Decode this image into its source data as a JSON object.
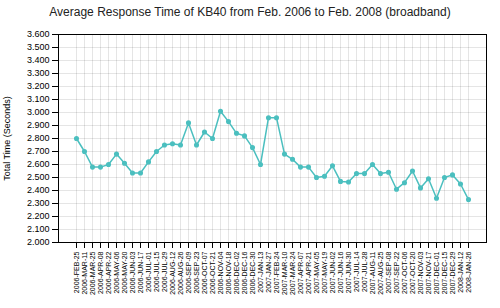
{
  "chart_data": {
    "type": "line",
    "title": "Average Response Time of KB40 from Feb. 2006 to Feb. 2008 (broadband)",
    "ylabel": "Total Time (Seconds)",
    "categories": [
      "2006-FEB-25",
      "2006-MAR-11",
      "2006-MAR-25",
      "2006-APR-08",
      "2006-APR-22",
      "2006-MAY-06",
      "2006-MAY-20",
      "2006-JUN-03",
      "2006-JUN-17",
      "2006-JUL-01",
      "2006-JUL-15",
      "2006-JUL-29",
      "2006-AUG-12",
      "2006-AUG-26",
      "2006-SEP-09",
      "2006-SEP-23",
      "2006-OCT-07",
      "2006-OCT-21",
      "2006-NOV-04",
      "2006-NOV-18",
      "2006-DEC-02",
      "2006-DEC-16",
      "2006-DEC-30",
      "2007-JAN-13",
      "2007-JAN-27",
      "2007-FEB-24",
      "2007-MAR-10",
      "2007-MAR-24",
      "2007-APR-07",
      "2007-APR-21",
      "2007-MAY-05",
      "2007-MAY-19",
      "2007-JUN-02",
      "2007-JUN-16",
      "2007-JUN-30",
      "2007-JUL-14",
      "2007-JUL-28",
      "2007-AUG-11",
      "2007-AUG-25",
      "2007-SEP-08",
      "2007-SEP-22",
      "2007-OCT-06",
      "2007-OCT-20",
      "2007-NOV-03",
      "2007-NOV-17",
      "2007-DEC-01",
      "2007-DEC-15",
      "2007-DEC-29",
      "2008-JAN-12",
      "2008-JAN-26"
    ],
    "values": [
      2.8,
      2.7,
      2.58,
      2.58,
      2.6,
      2.68,
      2.61,
      2.535,
      2.535,
      2.62,
      2.7,
      2.75,
      2.76,
      2.75,
      2.92,
      2.75,
      2.85,
      2.8,
      3.01,
      2.93,
      2.84,
      2.82,
      2.73,
      2.6,
      2.96,
      2.96,
      2.68,
      2.64,
      2.58,
      2.58,
      2.5,
      2.51,
      2.59,
      2.47,
      2.465,
      2.53,
      2.53,
      2.6,
      2.53,
      2.54,
      2.41,
      2.46,
      2.55,
      2.42,
      2.49,
      2.34,
      2.5,
      2.52,
      2.45,
      2.33
    ],
    "color": "#4bbfbf",
    "marker": "circle",
    "ylim": [
      2.0,
      3.6
    ],
    "yticks": [
      {
        "value": 2.0,
        "label": "2.000"
      },
      {
        "value": 2.1,
        "label": "2.100"
      },
      {
        "value": 2.2,
        "label": "2.200"
      },
      {
        "value": 2.3,
        "label": "2.300"
      },
      {
        "value": 2.4,
        "label": "2.400"
      },
      {
        "value": 2.5,
        "label": "2.500"
      },
      {
        "value": 2.6,
        "label": "2.600"
      },
      {
        "value": 2.7,
        "label": "2.700"
      },
      {
        "value": 2.8,
        "label": "2.800"
      },
      {
        "value": 2.9,
        "label": "2.900"
      },
      {
        "value": 3.0,
        "label": "3.000"
      },
      {
        "value": 3.1,
        "label": "3.100"
      },
      {
        "value": 3.2,
        "label": "3.200"
      },
      {
        "value": 3.3,
        "label": "3.300"
      },
      {
        "value": 3.4,
        "label": "3.400"
      },
      {
        "value": 3.5,
        "label": "3.500"
      },
      {
        "value": 3.6,
        "label": "3.600"
      }
    ],
    "grid": true
  }
}
